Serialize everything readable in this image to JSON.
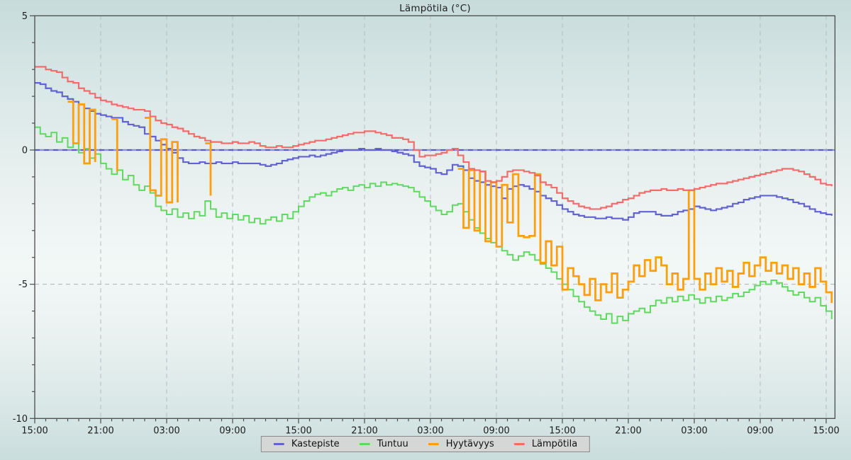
{
  "title": "Lämpötila (°C)",
  "chart_data": {
    "type": "line",
    "title": "Lämpötila (°C)",
    "xlabel": "",
    "ylabel": "",
    "x_unit": "time (hh:mm)",
    "x_start_hour": 0,
    "x_step_hours": 0.5,
    "xlim_hours": [
      0,
      72.8
    ],
    "ylim": [
      -10,
      5
    ],
    "x_major_every_hours": 6,
    "x_minor_every_hours": 1,
    "x_tick_labels": [
      "15:00",
      "21:00",
      "03:00",
      "09:00",
      "15:00",
      "21:00",
      "03:00",
      "09:00",
      "15:00",
      "21:00",
      "03:00",
      "09:00",
      "15:00"
    ],
    "y_major_ticks": [
      5,
      0,
      -5,
      -10
    ],
    "y_major_labels": [
      "5",
      "0",
      "-5",
      "-10"
    ],
    "y_minor_step": 1,
    "grid": {
      "vertical_dashed_at_major_ticks": true,
      "horizontal_dashed_at": [
        -5
      ],
      "zero_line": true,
      "grid_color": "#b7c0c0",
      "zero_line_color": "#8d8ddf",
      "zero_line_dash_color": "#4343c2"
    },
    "axis_color": "#4a4a4a",
    "legend_position": "bottom-center",
    "series": [
      {
        "name": "Kastepiste",
        "color": "#6262d0",
        "width": 2.2,
        "values": [
          2.5,
          2.45,
          2.3,
          2.2,
          2.15,
          2.0,
          1.9,
          1.8,
          1.7,
          1.55,
          1.45,
          1.35,
          1.3,
          1.25,
          1.2,
          1.2,
          1.05,
          0.95,
          0.9,
          0.85,
          0.6,
          0.5,
          0.35,
          0.2,
          0.05,
          -0.1,
          -0.3,
          -0.45,
          -0.5,
          -0.5,
          -0.45,
          -0.5,
          -0.5,
          -0.45,
          -0.5,
          -0.5,
          -0.45,
          -0.5,
          -0.5,
          -0.5,
          -0.5,
          -0.55,
          -0.6,
          -0.55,
          -0.5,
          -0.4,
          -0.35,
          -0.3,
          -0.25,
          -0.25,
          -0.2,
          -0.25,
          -0.2,
          -0.15,
          -0.1,
          -0.05,
          0.0,
          0.0,
          0.0,
          0.05,
          0.0,
          0.0,
          0.05,
          0.0,
          0.0,
          -0.05,
          -0.1,
          -0.15,
          -0.2,
          -0.45,
          -0.6,
          -0.65,
          -0.7,
          -0.85,
          -0.9,
          -0.75,
          -0.55,
          -0.6,
          -0.75,
          -1.05,
          -1.15,
          -1.2,
          -1.3,
          -1.35,
          -1.4,
          -1.8,
          -1.45,
          -1.35,
          -1.3,
          -1.35,
          -1.45,
          -1.55,
          -1.7,
          -1.8,
          -1.9,
          -2.05,
          -2.2,
          -2.3,
          -2.4,
          -2.45,
          -2.5,
          -2.5,
          -2.55,
          -2.55,
          -2.5,
          -2.55,
          -2.55,
          -2.6,
          -2.5,
          -2.35,
          -2.3,
          -2.3,
          -2.3,
          -2.4,
          -2.45,
          -2.45,
          -2.4,
          -2.3,
          -2.25,
          -2.2,
          -2.1,
          -2.15,
          -2.2,
          -2.25,
          -2.2,
          -2.15,
          -2.1,
          -2.0,
          -1.95,
          -1.85,
          -1.8,
          -1.75,
          -1.7,
          -1.7,
          -1.7,
          -1.75,
          -1.8,
          -1.85,
          -1.95,
          -2.0,
          -2.1,
          -2.2,
          -2.3,
          -2.35,
          -2.4,
          -2.45
        ]
      },
      {
        "name": "Tuntuu",
        "color": "#5fd95f",
        "width": 2.0,
        "values": [
          0.85,
          0.6,
          0.5,
          0.65,
          0.3,
          0.45,
          0.1,
          0.25,
          -0.1,
          0.05,
          -0.3,
          -0.15,
          -0.5,
          -0.7,
          -0.9,
          -0.75,
          -1.1,
          -0.95,
          -1.3,
          -1.5,
          -1.35,
          -1.6,
          -2.1,
          -2.25,
          -2.4,
          -2.2,
          -2.5,
          -2.35,
          -2.55,
          -2.3,
          -2.45,
          -1.9,
          -2.2,
          -2.5,
          -2.35,
          -2.55,
          -2.4,
          -2.6,
          -2.45,
          -2.7,
          -2.55,
          -2.75,
          -2.6,
          -2.5,
          -2.65,
          -2.4,
          -2.55,
          -2.3,
          -2.1,
          -1.9,
          -1.75,
          -1.65,
          -1.6,
          -1.7,
          -1.55,
          -1.45,
          -1.4,
          -1.5,
          -1.35,
          -1.3,
          -1.4,
          -1.25,
          -1.35,
          -1.2,
          -1.3,
          -1.25,
          -1.3,
          -1.35,
          -1.4,
          -1.55,
          -1.75,
          -1.9,
          -2.1,
          -2.25,
          -2.4,
          -2.3,
          -2.05,
          -2.0,
          -2.3,
          -2.6,
          -2.9,
          -3.1,
          -3.3,
          -3.45,
          -3.6,
          -3.75,
          -3.9,
          -4.1,
          -3.95,
          -3.8,
          -3.9,
          -4.1,
          -4.25,
          -4.4,
          -4.55,
          -4.8,
          -5.0,
          -5.2,
          -5.45,
          -5.65,
          -5.85,
          -6.0,
          -6.15,
          -6.3,
          -6.1,
          -6.45,
          -6.2,
          -6.35,
          -6.1,
          -6.0,
          -5.9,
          -6.05,
          -5.8,
          -5.6,
          -5.7,
          -5.5,
          -5.65,
          -5.45,
          -5.6,
          -5.4,
          -5.55,
          -5.7,
          -5.5,
          -5.65,
          -5.45,
          -5.6,
          -5.5,
          -5.35,
          -5.45,
          -5.3,
          -5.2,
          -5.05,
          -4.9,
          -5.0,
          -4.85,
          -4.95,
          -5.1,
          -5.25,
          -5.4,
          -5.3,
          -5.5,
          -5.65,
          -5.5,
          -5.8,
          -6.0,
          -6.3
        ]
      },
      {
        "name": "Hyytävyys",
        "color": "#ff9f0d",
        "width": 2.8,
        "values": [
          null,
          null,
          null,
          null,
          null,
          null,
          1.8,
          0.25,
          1.7,
          -0.5,
          1.5,
          -0.45,
          null,
          null,
          1.15,
          -0.8,
          null,
          null,
          null,
          null,
          1.2,
          -1.5,
          -1.7,
          0.4,
          -1.95,
          0.3,
          -1.95,
          null,
          null,
          null,
          null,
          0.25,
          -1.7,
          null,
          null,
          null,
          null,
          null,
          null,
          null,
          null,
          null,
          null,
          null,
          null,
          null,
          null,
          null,
          null,
          null,
          null,
          null,
          null,
          null,
          null,
          null,
          null,
          null,
          null,
          null,
          null,
          null,
          null,
          null,
          null,
          null,
          null,
          null,
          null,
          null,
          null,
          null,
          null,
          null,
          null,
          null,
          null,
          -0.7,
          -2.9,
          -0.75,
          -3.0,
          -0.8,
          -3.4,
          -1.2,
          -3.6,
          -1.3,
          -2.7,
          -0.9,
          -3.2,
          -3.25,
          -3.2,
          -0.9,
          -4.2,
          -3.4,
          -4.3,
          -3.6,
          -5.2,
          -4.4,
          -4.7,
          -5.0,
          -5.4,
          -4.8,
          -5.6,
          -5.0,
          -5.3,
          -4.6,
          -5.5,
          -5.2,
          -4.9,
          -4.3,
          -4.7,
          -4.1,
          -4.5,
          -4.0,
          -4.3,
          -5.0,
          -4.6,
          -5.2,
          -4.8,
          -1.5,
          -4.8,
          -5.2,
          -4.6,
          -5.0,
          -4.4,
          -4.9,
          -4.5,
          -5.1,
          -4.6,
          -4.2,
          -4.7,
          -4.3,
          -4.0,
          -4.5,
          -4.2,
          -4.6,
          -4.3,
          -4.8,
          -4.4,
          -5.0,
          -4.6,
          -5.1,
          -4.4,
          -4.9,
          -5.3,
          -5.7
        ]
      },
      {
        "name": "Lämpötila",
        "color": "#f26c6c",
        "width": 2.2,
        "values": [
          3.1,
          3.1,
          3.0,
          2.95,
          2.9,
          2.7,
          2.55,
          2.5,
          2.3,
          2.2,
          2.1,
          1.95,
          1.85,
          1.8,
          1.7,
          1.65,
          1.6,
          1.55,
          1.5,
          1.5,
          1.45,
          1.25,
          1.1,
          1.0,
          0.95,
          0.85,
          0.8,
          0.7,
          0.6,
          0.5,
          0.45,
          0.35,
          0.3,
          0.3,
          0.25,
          0.25,
          0.3,
          0.25,
          0.25,
          0.3,
          0.25,
          0.15,
          0.1,
          0.1,
          0.15,
          0.1,
          0.1,
          0.15,
          0.2,
          0.25,
          0.3,
          0.35,
          0.35,
          0.4,
          0.45,
          0.5,
          0.55,
          0.6,
          0.65,
          0.65,
          0.7,
          0.7,
          0.65,
          0.6,
          0.55,
          0.45,
          0.45,
          0.4,
          0.3,
          0.0,
          -0.25,
          -0.2,
          -0.2,
          -0.15,
          -0.1,
          0.0,
          0.05,
          -0.2,
          -0.45,
          -0.7,
          -0.75,
          -0.8,
          -1.15,
          -1.2,
          -1.15,
          -1.0,
          -0.8,
          -0.75,
          -0.75,
          -0.8,
          -0.85,
          -0.95,
          -1.2,
          -1.3,
          -1.4,
          -1.6,
          -1.8,
          -1.9,
          -2.0,
          -2.1,
          -2.15,
          -2.2,
          -2.2,
          -2.15,
          -2.1,
          -2.0,
          -1.95,
          -1.85,
          -1.8,
          -1.7,
          -1.6,
          -1.55,
          -1.5,
          -1.5,
          -1.45,
          -1.5,
          -1.5,
          -1.45,
          -1.5,
          -1.5,
          -1.45,
          -1.4,
          -1.35,
          -1.3,
          -1.25,
          -1.25,
          -1.2,
          -1.15,
          -1.1,
          -1.05,
          -1.0,
          -0.95,
          -0.9,
          -0.85,
          -0.8,
          -0.75,
          -0.7,
          -0.7,
          -0.75,
          -0.8,
          -0.9,
          -1.0,
          -1.1,
          -1.25,
          -1.3,
          -1.35
        ]
      }
    ]
  }
}
